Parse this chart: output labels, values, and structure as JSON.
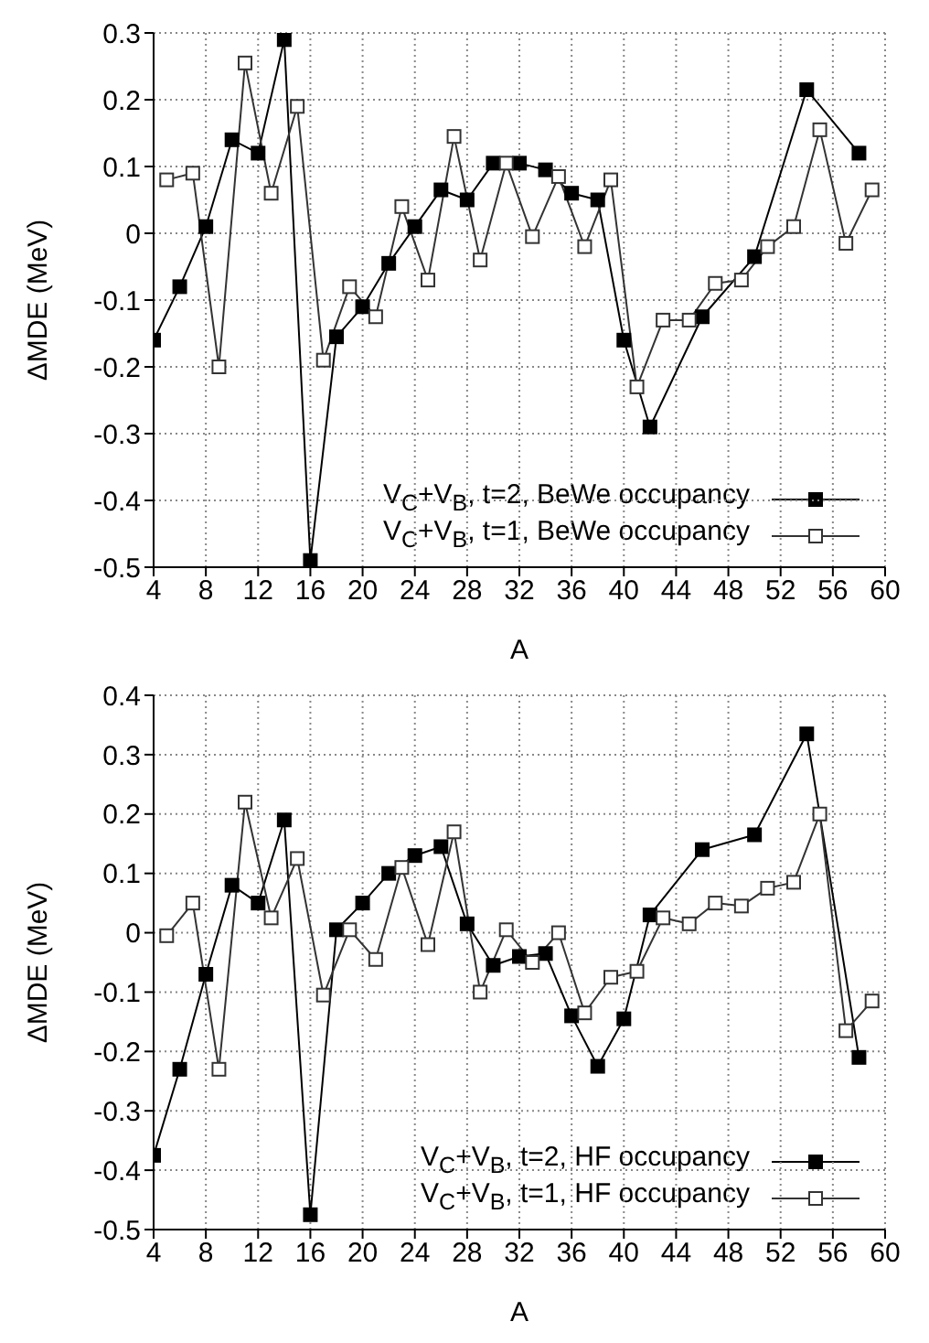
{
  "chart_data": [
    {
      "type": "line",
      "xlabel": "A",
      "ylabel": "ΔMDE (MeV)",
      "xlim": [
        4,
        60
      ],
      "xticks": [
        4,
        8,
        12,
        16,
        20,
        24,
        28,
        32,
        36,
        40,
        44,
        48,
        52,
        56,
        60
      ],
      "ylim": [
        -0.5,
        0.3
      ],
      "yticks": [
        -0.5,
        -0.4,
        -0.3,
        -0.2,
        -0.1,
        0,
        0.1,
        0.2,
        0.3
      ],
      "grid": true,
      "legend": "bottom right",
      "marker": "square",
      "line_style": "solid",
      "series": [
        {
          "name": "V$_{C}$+V$_{B}$, t=2, BeWe occupancy",
          "color": "#000000",
          "x": [
            4,
            6,
            8,
            10,
            12,
            14,
            16,
            18,
            20,
            22,
            24,
            26,
            28,
            30,
            32,
            34,
            36,
            38,
            40,
            42,
            46,
            50,
            54,
            58
          ],
          "values": [
            -0.16,
            -0.08,
            0.01,
            0.14,
            0.12,
            0.29,
            -0.49,
            -0.155,
            -0.11,
            -0.045,
            0.01,
            0.065,
            0.05,
            0.105,
            0.105,
            0.095,
            0.06,
            0.05,
            -0.16,
            -0.29,
            -0.125,
            -0.035,
            0.215,
            0.12
          ]
        },
        {
          "name": "V$_{C}$+V$_{B}$, t=1, BeWe occupancy",
          "color": "#333333",
          "x": [
            5,
            7,
            9,
            11,
            13,
            15,
            17,
            19,
            21,
            23,
            25,
            27,
            29,
            31,
            33,
            35,
            37,
            39,
            41,
            43,
            45,
            47,
            49,
            51,
            53,
            55,
            57,
            59
          ],
          "values": [
            0.08,
            0.09,
            -0.2,
            0.255,
            0.06,
            0.19,
            -0.19,
            -0.08,
            -0.125,
            0.04,
            -0.07,
            0.145,
            -0.04,
            0.105,
            -0.005,
            0.085,
            -0.02,
            0.08,
            -0.23,
            -0.13,
            -0.13,
            -0.075,
            -0.07,
            -0.02,
            0.01,
            0.155,
            -0.015,
            0.065
          ]
        }
      ]
    },
    {
      "type": "line",
      "xlabel": "A",
      "ylabel": "ΔMDE (MeV)",
      "xlim": [
        4,
        60
      ],
      "xticks": [
        4,
        8,
        12,
        16,
        20,
        24,
        28,
        32,
        36,
        40,
        44,
        48,
        52,
        56,
        60
      ],
      "ylim": [
        -0.5,
        0.4
      ],
      "yticks": [
        -0.5,
        -0.4,
        -0.3,
        -0.2,
        -0.1,
        0,
        0.1,
        0.2,
        0.3,
        0.4
      ],
      "grid": true,
      "legend": "bottom right",
      "marker": "square",
      "line_style": "solid",
      "series": [
        {
          "name": "V$_{C}$+V$_{B}$, t=2, HF occupancy",
          "color": "#000000",
          "x": [
            4,
            6,
            8,
            10,
            12,
            14,
            16,
            18,
            20,
            22,
            24,
            26,
            28,
            30,
            32,
            34,
            36,
            38,
            40,
            42,
            46,
            50,
            54,
            58
          ],
          "values": [
            -0.375,
            -0.23,
            -0.07,
            0.08,
            0.05,
            0.19,
            -0.475,
            0.005,
            0.05,
            0.1,
            0.13,
            0.145,
            0.015,
            -0.055,
            -0.04,
            -0.035,
            -0.14,
            -0.225,
            -0.145,
            0.03,
            0.14,
            0.165,
            0.335,
            -0.21
          ]
        },
        {
          "name": "V$_{C}$+V$_{B}$, t=1, HF occupancy",
          "color": "#333333",
          "x": [
            5,
            7,
            9,
            11,
            13,
            15,
            17,
            19,
            21,
            23,
            25,
            27,
            29,
            31,
            33,
            35,
            37,
            39,
            41,
            43,
            45,
            47,
            49,
            51,
            53,
            55,
            57,
            59
          ],
          "values": [
            -0.005,
            0.05,
            -0.23,
            0.22,
            0.025,
            0.125,
            -0.105,
            0.005,
            -0.045,
            0.11,
            -0.02,
            0.17,
            -0.1,
            0.005,
            -0.05,
            0,
            -0.135,
            -0.075,
            -0.065,
            0.025,
            0.015,
            0.05,
            0.045,
            0.075,
            0.085,
            0.2,
            -0.165,
            -0.115
          ]
        }
      ]
    }
  ]
}
